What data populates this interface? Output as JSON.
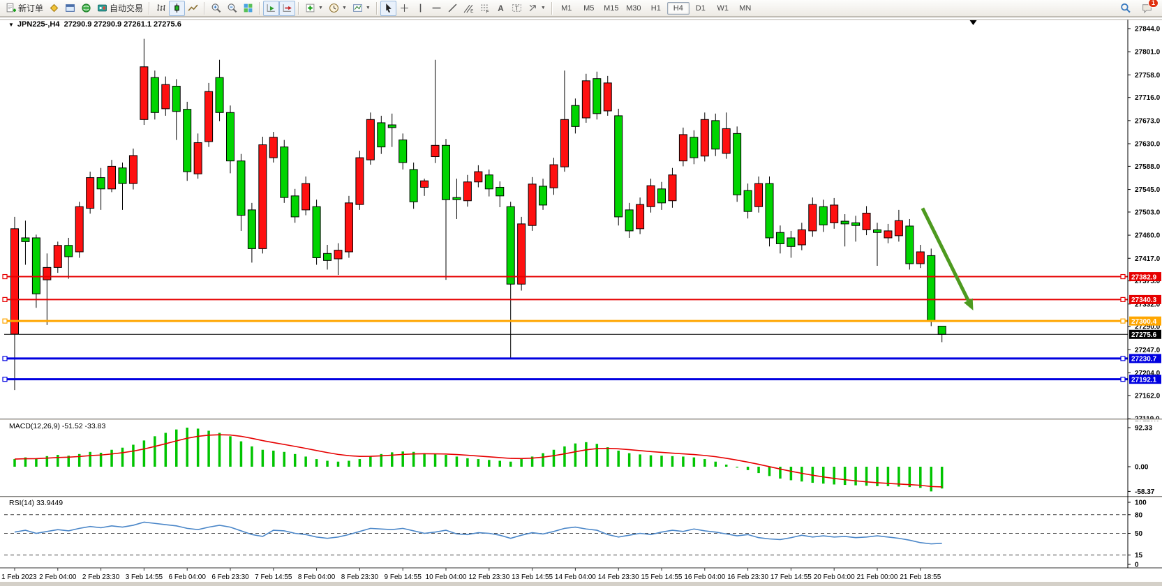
{
  "toolbar": {
    "groups": [
      {
        "items": [
          {
            "name": "new-order-button",
            "icon": "doc-plus",
            "label": "新订单"
          },
          {
            "name": "market-watch-button",
            "icon": "diamond"
          },
          {
            "name": "data-window-button",
            "icon": "window"
          },
          {
            "name": "navigator-button",
            "icon": "orb"
          },
          {
            "name": "auto-trading-button",
            "icon": "robot",
            "label": "自动交易"
          }
        ]
      },
      {
        "items": [
          {
            "name": "bar-chart-button",
            "icon": "bars"
          },
          {
            "name": "candlestick-chart-button",
            "icon": "candle",
            "active": true
          },
          {
            "name": "line-chart-button",
            "icon": "linechart"
          }
        ]
      },
      {
        "items": [
          {
            "name": "zoom-in-button",
            "icon": "zoom-in"
          },
          {
            "name": "zoom-out-button",
            "icon": "zoom-out"
          },
          {
            "name": "tile-windows-button",
            "icon": "grid"
          }
        ]
      },
      {
        "items": [
          {
            "name": "auto-scroll-button",
            "icon": "autoscroll",
            "active": true
          },
          {
            "name": "chart-shift-button",
            "icon": "chartshift",
            "active": true
          }
        ]
      },
      {
        "items": [
          {
            "name": "indicators-button",
            "icon": "plus-green",
            "dropdown": true
          },
          {
            "name": "periods-button",
            "icon": "clock",
            "dropdown": true
          },
          {
            "name": "templates-button",
            "icon": "template",
            "dropdown": true
          }
        ]
      },
      {
        "items": [
          {
            "name": "cursor-button",
            "icon": "cursor",
            "active": true
          },
          {
            "name": "crosshair-button",
            "icon": "crosshair"
          },
          {
            "name": "vertical-line-button",
            "icon": "vline"
          },
          {
            "name": "horizontal-line-button",
            "icon": "hline"
          },
          {
            "name": "trendline-button",
            "icon": "trendline"
          },
          {
            "name": "equidistant-channel-button",
            "icon": "channel"
          },
          {
            "name": "fibonacci-button",
            "icon": "fibo"
          },
          {
            "name": "text-button",
            "icon": "text-a"
          },
          {
            "name": "text-label-button",
            "icon": "label-t"
          },
          {
            "name": "arrows-button",
            "icon": "shapes",
            "dropdown": true
          }
        ]
      }
    ],
    "timeframes": [
      {
        "label": "M1"
      },
      {
        "label": "M5"
      },
      {
        "label": "M15"
      },
      {
        "label": "M30"
      },
      {
        "label": "H1"
      },
      {
        "label": "H4",
        "active": true
      },
      {
        "label": "D1"
      },
      {
        "label": "W1"
      },
      {
        "label": "MN"
      }
    ],
    "right": [
      {
        "name": "search-button",
        "icon": "search"
      },
      {
        "name": "notifications-button",
        "icon": "chat",
        "badge": "1"
      }
    ]
  },
  "chart": {
    "symbol_period": "JPN225-,H4",
    "ohlc_text": "27290.9 27290.9 27261.1 27275.6"
  },
  "price_axis": {
    "labels": [
      "27844.0",
      "27801.0",
      "27758.0",
      "27716.0",
      "27673.0",
      "27630.0",
      "27588.0",
      "27545.0",
      "27503.0",
      "27460.0",
      "27417.0",
      "27375.0",
      "27332.0",
      "27290.0",
      "27247.0",
      "27204.0",
      "27162.0",
      "27119.0"
    ]
  },
  "levels": [
    {
      "price": 27382.9,
      "label": "27382.9",
      "color": "#e60000",
      "width": 2
    },
    {
      "price": 27340.3,
      "label": "27340.3",
      "color": "#e60000",
      "width": 2
    },
    {
      "price": 27300.4,
      "label": "27300.4",
      "color": "#ffa600",
      "width": 3
    },
    {
      "price": 27230.7,
      "label": "27230.7",
      "color": "#0000e0",
      "width": 3
    },
    {
      "price": 27192.1,
      "label": "27192.1",
      "color": "#0000e0",
      "width": 3
    }
  ],
  "current_price": {
    "value": 27275.6,
    "label": "27275.6",
    "color": "#000000"
  },
  "indicators": {
    "macd": {
      "label": "MACD(12,26,9) -51.52 -33.83",
      "axis_labels": [
        "92.33",
        "0.00",
        "-58.37"
      ],
      "axis_values": [
        92.33,
        0,
        -58.37
      ],
      "histogram_color": "#00c400",
      "signal_color": "#e60000"
    },
    "rsi": {
      "label": "RSI(14) 33.9449",
      "axis_labels": [
        "100",
        "80",
        "50",
        "15",
        "0"
      ],
      "axis_values": [
        100,
        80,
        50,
        15,
        0
      ],
      "level_lines": [
        80,
        50,
        15
      ],
      "line_color": "#4a86c8"
    }
  },
  "time_axis": {
    "labels": [
      "1 Feb 2023",
      "2 Feb 04:00",
      "2 Feb 23:30",
      "3 Feb 14:55",
      "6 Feb 04:00",
      "6 Feb 23:30",
      "7 Feb 14:55",
      "8 Feb 04:00",
      "8 Feb 23:30",
      "9 Feb 14:55",
      "10 Feb 04:00",
      "12 Feb 23:30",
      "13 Feb 14:55",
      "14 Feb 04:00",
      "14 Feb 23:30",
      "15 Feb 14:55",
      "16 Feb 04:00",
      "16 Feb 23:30",
      "17 Feb 14:55",
      "20 Feb 04:00",
      "21 Feb 00:00",
      "21 Feb 18:55"
    ],
    "bars_per_tick": 4
  },
  "annotations": {
    "trend_arrow": {
      "from_bar": 84.2,
      "from_price": 27510,
      "to_bar": 88.9,
      "to_price": 27320,
      "color": "#4d9a1f"
    },
    "shift_marker_bar": 88.9
  },
  "chart_data": {
    "type": "candlestick",
    "symbol": "JPN225-",
    "period": "H4",
    "up_color": "#fe1010",
    "down_color": "#00d400",
    "price_range": [
      27119.0,
      27844.0
    ],
    "candles": [
      [
        27276,
        27494,
        27172,
        27472
      ],
      [
        27455,
        27487,
        27405,
        27448
      ],
      [
        27455,
        27461,
        27325,
        27351
      ],
      [
        27377,
        27426,
        27293,
        27400
      ],
      [
        27400,
        27448,
        27390,
        27441
      ],
      [
        27441,
        27455,
        27379,
        27420
      ],
      [
        27429,
        27522,
        27418,
        27513
      ],
      [
        27510,
        27578,
        27500,
        27567
      ],
      [
        27567,
        27585,
        27507,
        27546
      ],
      [
        27546,
        27600,
        27540,
        27588
      ],
      [
        27585,
        27595,
        27507,
        27556
      ],
      [
        27556,
        27621,
        27545,
        27608
      ],
      [
        27675,
        27825,
        27665,
        27773
      ],
      [
        27753,
        27766,
        27675,
        27688
      ],
      [
        27695,
        27755,
        27682,
        27740
      ],
      [
        27737,
        27750,
        27637,
        27690
      ],
      [
        27694,
        27708,
        27561,
        27578
      ],
      [
        27574,
        27649,
        27565,
        27632
      ],
      [
        27634,
        27743,
        27624,
        27727
      ],
      [
        27753,
        27786,
        27672,
        27688
      ],
      [
        27688,
        27701,
        27575,
        27598
      ],
      [
        27598,
        27611,
        27468,
        27497
      ],
      [
        27507,
        27520,
        27409,
        27435
      ],
      [
        27435,
        27643,
        27426,
        27628
      ],
      [
        27604,
        27652,
        27595,
        27642
      ],
      [
        27624,
        27637,
        27520,
        27530
      ],
      [
        27533,
        27546,
        27483,
        27494
      ],
      [
        27507,
        27569,
        27497,
        27556
      ],
      [
        27513,
        27526,
        27405,
        27418
      ],
      [
        27426,
        27442,
        27396,
        27413
      ],
      [
        27416,
        27445,
        27386,
        27432
      ],
      [
        27429,
        27533,
        27418,
        27520
      ],
      [
        27517,
        27617,
        27507,
        27604
      ],
      [
        27600,
        27688,
        27591,
        27675
      ],
      [
        27669,
        27682,
        27611,
        27624
      ],
      [
        27665,
        27686,
        27624,
        27660
      ],
      [
        27637,
        27649,
        27582,
        27595
      ],
      [
        27582,
        27595,
        27509,
        27522
      ],
      [
        27549,
        27565,
        27533,
        27561
      ],
      [
        27606,
        27786,
        27594,
        27627
      ],
      [
        27627,
        27639,
        27377,
        27526
      ],
      [
        27530,
        27565,
        27490,
        27526
      ],
      [
        27524,
        27572,
        27513,
        27559
      ],
      [
        27559,
        27590,
        27549,
        27578
      ],
      [
        27572,
        27582,
        27532,
        27546
      ],
      [
        27549,
        27560,
        27512,
        27533
      ],
      [
        27513,
        27522,
        27232,
        27369
      ],
      [
        27369,
        27494,
        27357,
        27481
      ],
      [
        27478,
        27568,
        27468,
        27555
      ],
      [
        27551,
        27565,
        27507,
        27516
      ],
      [
        27548,
        27604,
        27535,
        27591
      ],
      [
        27587,
        27766,
        27578,
        27675
      ],
      [
        27701,
        27714,
        27649,
        27662
      ],
      [
        27678,
        27760,
        27669,
        27747
      ],
      [
        27751,
        27764,
        27675,
        27686
      ],
      [
        27691,
        27756,
        27682,
        27743
      ],
      [
        27682,
        27695,
        27478,
        27494
      ],
      [
        27507,
        27520,
        27455,
        27468
      ],
      [
        27472,
        27530,
        27462,
        27517
      ],
      [
        27513,
        27565,
        27502,
        27552
      ],
      [
        27546,
        27559,
        27507,
        27520
      ],
      [
        27524,
        27585,
        27511,
        27572
      ],
      [
        27598,
        27660,
        27588,
        27647
      ],
      [
        27642,
        27655,
        27592,
        27604
      ],
      [
        27607,
        27688,
        27597,
        27675
      ],
      [
        27673,
        27686,
        27607,
        27620
      ],
      [
        27612,
        27688,
        27602,
        27658
      ],
      [
        27649,
        27662,
        27522,
        27535
      ],
      [
        27543,
        27556,
        27491,
        27504
      ],
      [
        27513,
        27569,
        27502,
        27556
      ],
      [
        27556,
        27569,
        27439,
        27455
      ],
      [
        27465,
        27478,
        27426,
        27444
      ],
      [
        27455,
        27468,
        27418,
        27439
      ],
      [
        27442,
        27483,
        27432,
        27470
      ],
      [
        27468,
        27530,
        27457,
        27517
      ],
      [
        27513,
        27526,
        27466,
        27479
      ],
      [
        27483,
        27529,
        27472,
        27516
      ],
      [
        27486,
        27499,
        27439,
        27481
      ],
      [
        27483,
        27496,
        27448,
        27478
      ],
      [
        27470,
        27514,
        27460,
        27501
      ],
      [
        27470,
        27483,
        27403,
        27465
      ],
      [
        27455,
        27481,
        27445,
        27468
      ],
      [
        27459,
        27507,
        27448,
        27487
      ],
      [
        27477,
        27490,
        27396,
        27407
      ],
      [
        27407,
        27442,
        27399,
        27429
      ],
      [
        27422,
        27435,
        27291,
        27301
      ],
      [
        27290.9,
        27290.9,
        27261.1,
        27275.6
      ]
    ],
    "macd": [
      18,
      22,
      20,
      25,
      28,
      26,
      30,
      35,
      33,
      40,
      45,
      52,
      62,
      72,
      80,
      88,
      92.33,
      90,
      85,
      80,
      72,
      60,
      48,
      40,
      38,
      35,
      30,
      24,
      18,
      14,
      12,
      14,
      18,
      25,
      30,
      34,
      36,
      35,
      32,
      30,
      28,
      24,
      20,
      18,
      16,
      14,
      12,
      18,
      24,
      32,
      40,
      48,
      55,
      58,
      54,
      46,
      38,
      32,
      29,
      27,
      26,
      25,
      24,
      22,
      18,
      12,
      5,
      -2,
      -8,
      -15,
      -22,
      -28,
      -32,
      -35,
      -38,
      -40,
      -42,
      -43,
      -44,
      -45,
      -46,
      -46,
      -47,
      -48,
      -50,
      -58.37,
      -51.52
    ],
    "rsi": [
      52,
      55,
      50,
      53,
      56,
      54,
      58,
      61,
      59,
      62,
      60,
      63,
      68,
      66,
      64,
      62,
      58,
      56,
      60,
      63,
      60,
      54,
      48,
      45,
      55,
      54,
      50,
      48,
      44,
      42,
      44,
      48,
      53,
      58,
      57,
      56,
      58,
      54,
      50,
      52,
      55,
      49,
      48,
      51,
      50,
      47,
      42,
      47,
      51,
      49,
      53,
      58,
      60,
      57,
      55,
      48,
      44,
      47,
      50,
      48,
      52,
      55,
      53,
      57,
      54,
      52,
      49,
      46,
      48,
      43,
      41,
      40,
      43,
      47,
      44,
      46,
      44,
      45,
      43,
      44,
      46,
      44,
      42,
      39,
      35,
      33,
      33.94
    ]
  }
}
